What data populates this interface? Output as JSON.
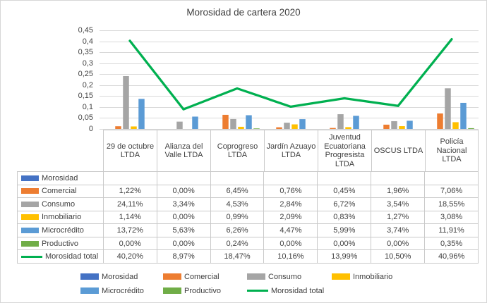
{
  "title": "Morosidad de cartera 2020",
  "colors": {
    "grid": "#d9d9d9",
    "table_border": "#c9c9c9",
    "text": "#404040",
    "accent_line": "#00b050"
  },
  "chart_data": {
    "type": "bar",
    "subtype": "grouped bars with overlay line",
    "title": "Morosidad de cartera 2020",
    "xlabel": "",
    "ylabel": "",
    "ylim": [
      0,
      0.45
    ],
    "ytick_step": 0.05,
    "ytick_labels": [
      "0",
      "0,05",
      "0,1",
      "0,15",
      "0,2",
      "0,25",
      "0,3",
      "0,35",
      "0,4",
      "0,45"
    ],
    "grid": true,
    "legend_position": "bottom",
    "categories": [
      "29 de octubre LTDA",
      "Alianza del Valle LTDA",
      "Coprogreso LTDA",
      "Jardín Azuayo LTDA",
      "Juventud Ecuatoriana Progresista LTDA",
      "OSCUS LTDA",
      "Policía Nacional LTDA"
    ],
    "series": [
      {
        "name": "Morosidad",
        "type": "bar",
        "color": "#4472c4",
        "values": [
          null,
          null,
          null,
          null,
          null,
          null,
          null
        ],
        "display": [
          "",
          "",
          "",
          "",
          "",
          "",
          ""
        ]
      },
      {
        "name": "Comercial",
        "type": "bar",
        "color": "#ed7d31",
        "values": [
          0.0122,
          0.0,
          0.0645,
          0.0076,
          0.0045,
          0.0196,
          0.0706
        ],
        "display": [
          "1,22%",
          "0,00%",
          "6,45%",
          "0,76%",
          "0,45%",
          "1,96%",
          "7,06%"
        ]
      },
      {
        "name": "Consumo",
        "type": "bar",
        "color": "#a5a5a5",
        "values": [
          0.2411,
          0.0334,
          0.0453,
          0.0284,
          0.0672,
          0.0354,
          0.1855
        ],
        "display": [
          "24,11%",
          "3,34%",
          "4,53%",
          "2,84%",
          "6,72%",
          "3,54%",
          "18,55%"
        ]
      },
      {
        "name": "Inmobiliario",
        "type": "bar",
        "color": "#ffc000",
        "values": [
          0.0114,
          0.0,
          0.0099,
          0.0209,
          0.0083,
          0.0127,
          0.0308
        ],
        "display": [
          "1,14%",
          "0,00%",
          "0,99%",
          "2,09%",
          "0,83%",
          "1,27%",
          "3,08%"
        ]
      },
      {
        "name": "Microcrédito",
        "type": "bar",
        "color": "#5b9bd5",
        "values": [
          0.1372,
          0.0563,
          0.0626,
          0.0447,
          0.0599,
          0.0374,
          0.1191
        ],
        "display": [
          "13,72%",
          "5,63%",
          "6,26%",
          "4,47%",
          "5,99%",
          "3,74%",
          "11,91%"
        ]
      },
      {
        "name": "Productivo",
        "type": "bar",
        "color": "#70ad47",
        "values": [
          0.0,
          0.0,
          0.0024,
          0.0,
          0.0,
          0.0,
          0.0035
        ],
        "display": [
          "0,00%",
          "0,00%",
          "0,24%",
          "0,00%",
          "0,00%",
          "0,00%",
          "0,35%"
        ]
      },
      {
        "name": "Morosidad total",
        "type": "line",
        "color": "#00b050",
        "values": [
          0.402,
          0.0897,
          0.1847,
          0.1016,
          0.1399,
          0.105,
          0.4096
        ],
        "display": [
          "40,20%",
          "8,97%",
          "18,47%",
          "10,16%",
          "13,99%",
          "10,50%",
          "40,96%"
        ]
      }
    ],
    "legend_rows": [
      [
        "Morosidad",
        "Comercial",
        "Consumo",
        "Inmobiliario"
      ],
      [
        "Microcrédito",
        "Productivo",
        "Morosidad total"
      ]
    ]
  }
}
